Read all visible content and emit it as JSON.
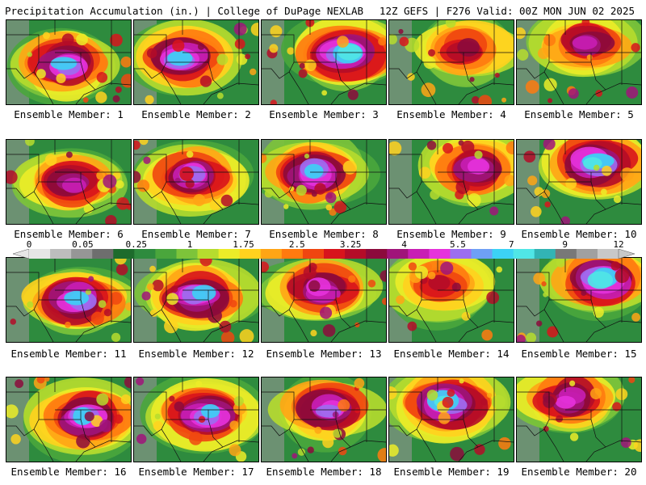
{
  "header": {
    "title": "Precipitation Accumulation (in.) | College of DuPage NEXLAB",
    "run_info": "12Z GEFS | F276 Valid: 00Z MON JUN 02 2025"
  },
  "members": [
    {
      "label": "Ensemble Member: 1",
      "intensity": 0.85
    },
    {
      "label": "Ensemble Member: 2",
      "intensity": 0.8
    },
    {
      "label": "Ensemble Member: 3",
      "intensity": 0.95
    },
    {
      "label": "Ensemble Member: 4",
      "intensity": 0.45
    },
    {
      "label": "Ensemble Member: 5",
      "intensity": 0.6
    },
    {
      "label": "Ensemble Member: 6",
      "intensity": 0.55
    },
    {
      "label": "Ensemble Member: 7",
      "intensity": 0.75
    },
    {
      "label": "Ensemble Member: 8",
      "intensity": 0.85
    },
    {
      "label": "Ensemble Member: 9",
      "intensity": 0.7
    },
    {
      "label": "Ensemble Member: 10",
      "intensity": 0.95
    },
    {
      "label": "Ensemble Member: 11",
      "intensity": 0.85
    },
    {
      "label": "Ensemble Member: 12",
      "intensity": 0.8
    },
    {
      "label": "Ensemble Member: 13",
      "intensity": 0.7
    },
    {
      "label": "Ensemble Member: 14",
      "intensity": 0.35
    },
    {
      "label": "Ensemble Member: 15",
      "intensity": 0.9
    },
    {
      "label": "Ensemble Member: 16",
      "intensity": 0.8
    },
    {
      "label": "Ensemble Member: 17",
      "intensity": 0.85
    },
    {
      "label": "Ensemble Member: 18",
      "intensity": 0.75
    },
    {
      "label": "Ensemble Member: 19",
      "intensity": 0.9
    },
    {
      "label": "Ensemble Member: 20",
      "intensity": 0.65
    }
  ],
  "colorbar": {
    "labels": [
      "0",
      "0.05",
      "0.25",
      "1",
      "1.75",
      "2.5",
      "3.25",
      "4",
      "5.5",
      "7",
      "9",
      "12"
    ],
    "colors": [
      "#e6e6e6",
      "#bdbdbd",
      "#969696",
      "#6e6e6e",
      "#1d6b2c",
      "#2e8b3e",
      "#4aa63c",
      "#7dc43a",
      "#b6dc2e",
      "#ecec28",
      "#ffd21e",
      "#ffa515",
      "#ff7a0f",
      "#f04610",
      "#d8141c",
      "#b40c28",
      "#8c0a3c",
      "#a0147a",
      "#c81eb4",
      "#e632dc",
      "#9c6ef0",
      "#6ea0f5",
      "#3cd2f5",
      "#50e6e6",
      "#32b4b4",
      "#787878",
      "#a0a0a0",
      "#c8c8c8"
    ]
  }
}
